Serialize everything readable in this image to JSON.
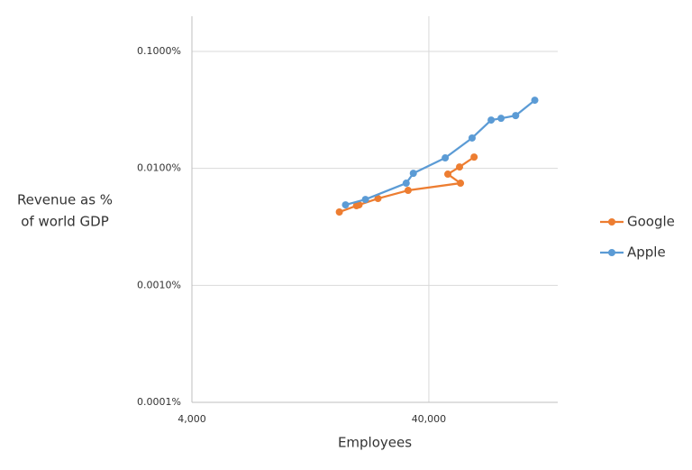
{
  "chart_data": {
    "type": "line",
    "xlabel": "Employees",
    "ylabel": [
      "Revenue as %",
      "of world GDP"
    ],
    "xscale": "log",
    "yscale": "log",
    "xlim": [
      4000,
      140000
    ],
    "xticks": [
      {
        "value": 4000,
        "label": "4,000"
      },
      {
        "value": 40000,
        "label": "40,000"
      }
    ],
    "ylim": [
      0.0001,
      0.2
    ],
    "yticks": [
      {
        "value": 0.0001,
        "label": "0.0001%"
      },
      {
        "value": 0.001,
        "label": "0.0010%"
      },
      {
        "value": 0.01,
        "label": "0.0100%"
      },
      {
        "value": 0.1,
        "label": "0.1000%"
      }
    ],
    "grid": true,
    "legend": "right",
    "series": [
      {
        "name": "Google",
        "color": "#ed7d31",
        "x": [
          16760,
          19800,
          20300,
          24400,
          32700,
          54400,
          48100,
          53900,
          62100
        ],
        "values": [
          0.00424,
          0.0048,
          0.00488,
          0.00553,
          0.00649,
          0.00748,
          0.00893,
          0.01029,
          0.0125
        ]
      },
      {
        "name": "Apple",
        "color": "#5b9bd5",
        "x": [
          17800,
          21600,
          32100,
          34400,
          46900,
          60900,
          73300,
          80700,
          93000,
          112000
        ],
        "values": [
          0.00488,
          0.00543,
          0.00748,
          0.00908,
          0.0123,
          0.0182,
          0.0259,
          0.0268,
          0.0283,
          0.0383
        ]
      }
    ]
  }
}
